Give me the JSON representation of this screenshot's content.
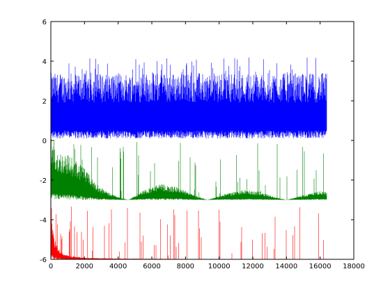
{
  "chart_data": {
    "type": "line",
    "title": "",
    "xlabel": "",
    "ylabel": "",
    "xlim": [
      0,
      18000
    ],
    "ylim": [
      -6,
      6
    ],
    "x_ticks": [
      0,
      2000,
      4000,
      6000,
      8000,
      10000,
      12000,
      14000,
      16000,
      18000
    ],
    "y_ticks": [
      -6,
      -4,
      -2,
      0,
      2,
      4,
      6
    ],
    "x_tick_labels": [
      "0",
      "2000",
      "4000",
      "6000",
      "8000",
      "10000",
      "12000",
      "14000",
      "16000",
      "18000"
    ],
    "y_tick_labels": [
      "-6",
      "-4",
      "-2",
      "0",
      "2",
      "4",
      "6"
    ],
    "grid": false,
    "legend": "none",
    "series": [
      {
        "color": "#0000ff",
        "style": "dense-noise-band",
        "x_range": [
          0,
          16384
        ],
        "envelope_x": [
          0,
          16384
        ],
        "envelope_lower": [
          0.1,
          0.1
        ],
        "envelope_upper": [
          3.4,
          3.4
        ],
        "peak_max": 4.2
      },
      {
        "color": "#008000",
        "style": "dense-noise-band",
        "x_range": [
          0,
          16384
        ],
        "envelope_x": [
          0,
          500,
          1000,
          1500,
          2000,
          2500,
          3000,
          3500,
          4000,
          4600,
          5500,
          6500,
          7500,
          8500,
          9300,
          10300,
          11500,
          12500,
          13300,
          14000,
          15000,
          16000,
          16384
        ],
        "envelope_lower": [
          -3.0,
          -3.0,
          -3.0,
          -3.0,
          -3.0,
          -3.0,
          -3.0,
          -3.0,
          -3.0,
          -3.0,
          -3.0,
          -3.0,
          -3.0,
          -3.0,
          -3.0,
          -3.0,
          -3.0,
          -3.0,
          -3.0,
          -3.0,
          -3.0,
          -3.0,
          -3.0
        ],
        "envelope_upper": [
          -0.2,
          -0.6,
          -0.7,
          -1.0,
          -1.4,
          -2.0,
          -2.4,
          -2.65,
          -2.85,
          -3.0,
          -2.5,
          -2.2,
          -2.35,
          -2.75,
          -3.0,
          -2.7,
          -2.5,
          -2.6,
          -2.85,
          -3.0,
          -2.75,
          -2.55,
          -2.6
        ],
        "peak_max": 0.1
      },
      {
        "color": "#ff0000",
        "style": "dense-noise-band",
        "x_range": [
          0,
          16384
        ],
        "envelope_x": [
          0,
          50,
          150,
          300,
          600,
          1000,
          2000,
          4000,
          8000,
          16384
        ],
        "envelope_lower": [
          -6.0,
          -6.0,
          -6.0,
          -6.0,
          -6.0,
          -6.0,
          -6.0,
          -6.0,
          -6.0,
          -6.0
        ],
        "envelope_upper": [
          -3.3,
          -3.9,
          -4.7,
          -5.2,
          -5.6,
          -5.8,
          -5.92,
          -5.96,
          -5.98,
          -5.99
        ],
        "peak_max": -3.3
      }
    ]
  }
}
